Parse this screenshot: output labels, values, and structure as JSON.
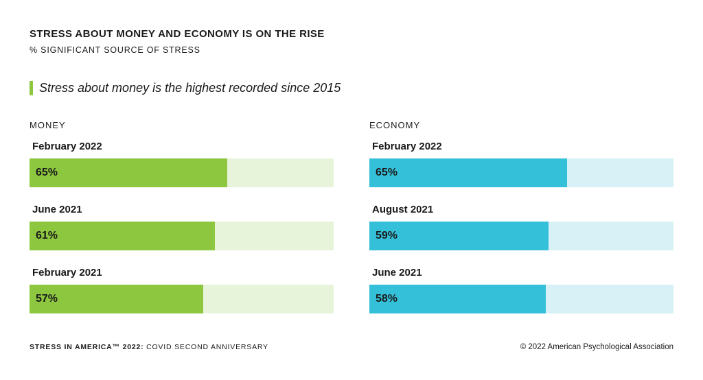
{
  "header": {
    "title": "STRESS ABOUT MONEY AND ECONOMY IS ON THE RISE",
    "subtitle": "% SIGNIFICANT SOURCE OF STRESS"
  },
  "callout": {
    "text": "Stress about money is the highest recorded since 2015",
    "accent_color": "#8dc63f"
  },
  "footer": {
    "left_bold": "STRESS IN AMERICA™ 2022:",
    "left_rest": " COVID SECOND ANNIVERSARY",
    "right": "© 2022 American Psychological Association"
  },
  "chart_data": [
    {
      "type": "bar",
      "title": "MONEY",
      "orientation": "horizontal",
      "categories": [
        "February 2022",
        "June 2021",
        "February 2021"
      ],
      "values": [
        65,
        61,
        57
      ],
      "value_labels": [
        "65%",
        "61%",
        "57%"
      ],
      "xlim": [
        0,
        100
      ],
      "bar_color": "#8dc63f",
      "track_color": "#e8f4da"
    },
    {
      "type": "bar",
      "title": "ECONOMY",
      "orientation": "horizontal",
      "categories": [
        "February 2022",
        "August 2021",
        "June 2021"
      ],
      "values": [
        65,
        59,
        58
      ],
      "value_labels": [
        "65%",
        "59%",
        "58%"
      ],
      "xlim": [
        0,
        100
      ],
      "bar_color": "#35c0d9",
      "track_color": "#d8f1f6"
    }
  ]
}
